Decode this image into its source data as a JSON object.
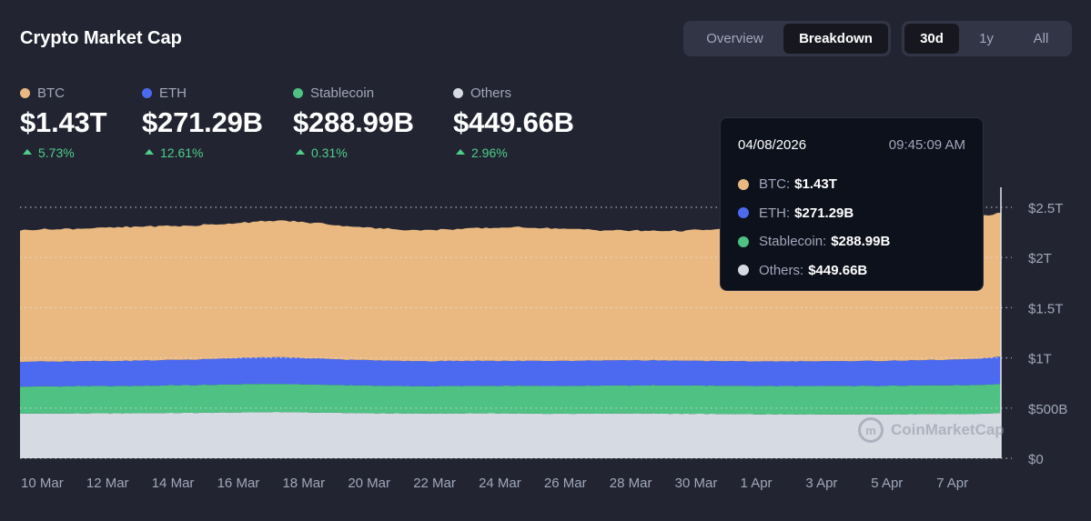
{
  "header": {
    "title": "Crypto Market Cap",
    "view_tabs": [
      {
        "label": "Overview",
        "active": false
      },
      {
        "label": "Breakdown",
        "active": true
      }
    ],
    "range_tabs": [
      {
        "label": "30d",
        "active": true
      },
      {
        "label": "1y",
        "active": false
      },
      {
        "label": "All",
        "active": false
      }
    ]
  },
  "stats": [
    {
      "label": "BTC",
      "value": "$1.43T",
      "change": "5.73%",
      "color": "#eab982"
    },
    {
      "label": "ETH",
      "value": "$271.29B",
      "change": "12.61%",
      "color": "#4c6af0"
    },
    {
      "label": "Stablecoin",
      "value": "$288.99B",
      "change": "0.31%",
      "color": "#4ec183"
    },
    {
      "label": "Others",
      "value": "$449.66B",
      "change": "2.96%",
      "color": "#d6dae2"
    }
  ],
  "tooltip": {
    "date": "04/08/2026",
    "time": "09:45:09 AM",
    "rows": [
      {
        "label": "BTC:",
        "value": "$1.43T",
        "color": "#eab982"
      },
      {
        "label": "ETH:",
        "value": "$271.29B",
        "color": "#4c6af0"
      },
      {
        "label": "Stablecoin:",
        "value": "$288.99B",
        "color": "#4ec183"
      },
      {
        "label": "Others:",
        "value": "$449.66B",
        "color": "#d6dae2"
      }
    ]
  },
  "watermark": "CoinMarketCap",
  "chart_data": {
    "type": "area",
    "stacked": true,
    "title": "Crypto Market Cap",
    "x_tick_labels": [
      "10 Mar",
      "12 Mar",
      "14 Mar",
      "16 Mar",
      "18 Mar",
      "20 Mar",
      "22 Mar",
      "24 Mar",
      "26 Mar",
      "28 Mar",
      "30 Mar",
      "1 Apr",
      "3 Apr",
      "5 Apr",
      "7 Apr"
    ],
    "y_tick_labels": [
      "$0",
      "$500B",
      "$1T",
      "$1.5T",
      "$2T",
      "$2.5T"
    ],
    "y_ticks": [
      0,
      500,
      1000,
      1500,
      2000,
      2500
    ],
    "ylim": [
      0,
      2500
    ],
    "y_units": "billions USD",
    "x_days": [
      0,
      1,
      2,
      3,
      4,
      5,
      6,
      7,
      8,
      9,
      10,
      11,
      12,
      13,
      14,
      15,
      16,
      17,
      18,
      19,
      20,
      21,
      22,
      23,
      24,
      25,
      26,
      27,
      28,
      29,
      30
    ],
    "series": [
      {
        "name": "Others",
        "color": "#d6dae2",
        "values": [
          445,
          446,
          447,
          448,
          450,
          452,
          454,
          458,
          460,
          456,
          452,
          448,
          446,
          446,
          447,
          446,
          444,
          445,
          446,
          446,
          444,
          442,
          440,
          438,
          437,
          436,
          437,
          438,
          439,
          440,
          450
        ]
      },
      {
        "name": "Stablecoin",
        "color": "#4ec183",
        "values": [
          270,
          270,
          272,
          272,
          274,
          276,
          278,
          282,
          280,
          278,
          276,
          274,
          272,
          272,
          274,
          276,
          278,
          278,
          280,
          280,
          282,
          282,
          282,
          282,
          283,
          284,
          285,
          286,
          287,
          288,
          289
        ]
      },
      {
        "name": "ETH",
        "color": "#4c6af0",
        "values": [
          247,
          248,
          249,
          250,
          252,
          254,
          258,
          262,
          265,
          260,
          255,
          252,
          250,
          250,
          250,
          248,
          248,
          249,
          250,
          250,
          248,
          246,
          245,
          245,
          246,
          247,
          248,
          250,
          252,
          258,
          271
        ]
      },
      {
        "name": "BTC",
        "color": "#eab982",
        "values": [
          1312,
          1318,
          1322,
          1330,
          1336,
          1332,
          1340,
          1350,
          1360,
          1350,
          1330,
          1315,
          1305,
          1310,
          1320,
          1330,
          1325,
          1310,
          1295,
          1290,
          1292,
          1305,
          1320,
          1340,
          1360,
          1372,
          1385,
          1395,
          1400,
          1410,
          1430
        ]
      }
    ],
    "legend": "top",
    "grid": "horizontal dotted"
  }
}
